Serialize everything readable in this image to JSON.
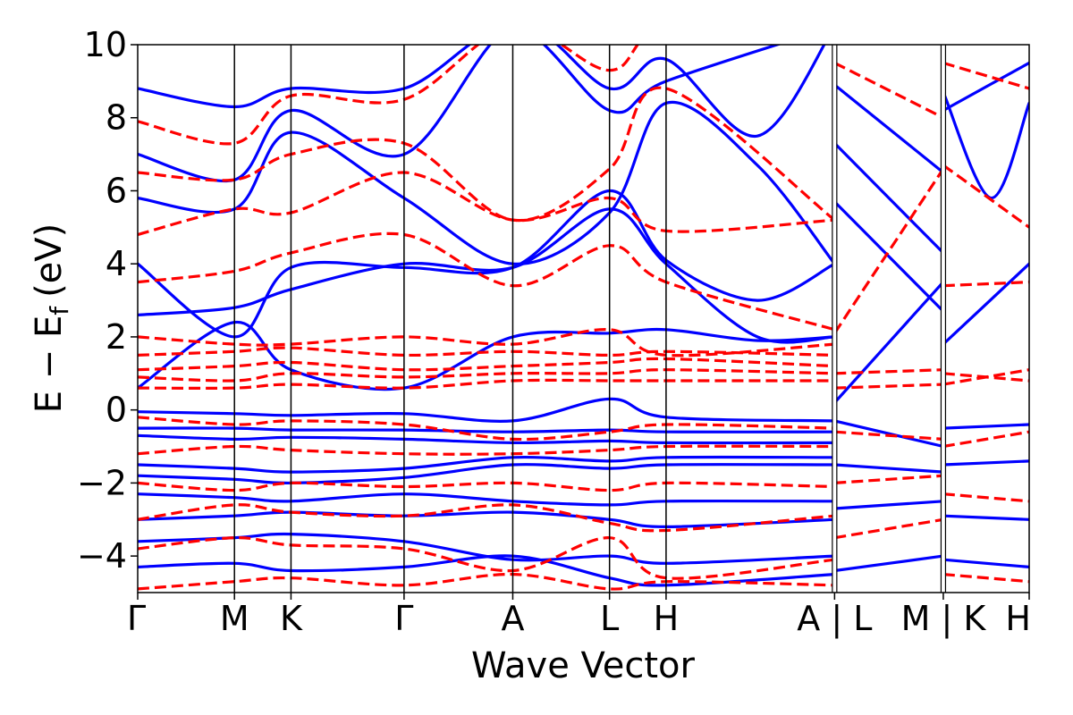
{
  "chart_data": {
    "type": "line",
    "title": "",
    "xlabel": "Wave Vector",
    "ylabel_main": "E − E",
    "ylabel_sub": "f",
    "ylabel_unit": "(eV)",
    "ylim": [
      -5,
      10
    ],
    "y_ticks": [
      -4,
      -2,
      0,
      2,
      4,
      6,
      8,
      10
    ],
    "y_tick_labels": [
      "−4",
      "−2",
      "0",
      "2",
      "4",
      "6",
      "8",
      "10"
    ],
    "grid": false,
    "legend": "none",
    "x_ticks": [
      0,
      0.89,
      1.41,
      2.45,
      3.45,
      4.34,
      4.86,
      6.41,
      7.41,
      8.2
    ],
    "x_tick_labels": [
      "Γ",
      "M",
      "K",
      "Γ",
      "A",
      "L",
      "H",
      "A | L",
      "M | K",
      "H"
    ],
    "path_breaks": [
      6.41,
      7.41
    ],
    "series": [
      {
        "color": "#0000ff",
        "style": "solid",
        "bands": [
          {
            "x": [
              0,
              0.89,
              1.41,
              2.45,
              3.45,
              4.34,
              4.86,
              6.41
            ],
            "y": [
              -0.05,
              -0.1,
              -0.15,
              -0.1,
              -0.3,
              0.3,
              -0.2,
              -0.3
            ]
          },
          {
            "x": [
              0,
              0.89,
              1.41,
              2.45,
              3.45,
              4.34,
              4.86,
              6.41
            ],
            "y": [
              -0.5,
              -0.5,
              -0.55,
              -0.55,
              -0.6,
              -0.55,
              -0.6,
              -0.6
            ]
          },
          {
            "x": [
              0,
              0.89,
              1.41,
              2.45,
              3.45,
              4.34,
              4.86,
              6.41
            ],
            "y": [
              -0.7,
              -0.8,
              -0.75,
              -0.8,
              -0.9,
              -0.85,
              -0.9,
              -0.9
            ]
          },
          {
            "x": [
              0,
              0.89,
              1.41,
              2.45,
              3.45,
              4.34,
              4.86,
              6.41
            ],
            "y": [
              -1.5,
              -1.6,
              -1.7,
              -1.6,
              -1.3,
              -1.4,
              -1.3,
              -1.3
            ]
          },
          {
            "x": [
              0,
              0.89,
              1.41,
              2.45,
              3.45,
              4.34,
              4.86,
              6.41
            ],
            "y": [
              -1.8,
              -1.9,
              -2.0,
              -1.85,
              -1.5,
              -1.6,
              -1.5,
              -1.5
            ]
          },
          {
            "x": [
              0,
              0.89,
              1.41,
              2.45,
              3.45,
              4.34,
              4.86,
              6.41
            ],
            "y": [
              -2.3,
              -2.4,
              -2.5,
              -2.3,
              -2.5,
              -2.6,
              -2.5,
              -2.5
            ]
          },
          {
            "x": [
              0,
              0.89,
              1.41,
              2.45,
              3.45,
              4.34,
              4.86,
              6.41
            ],
            "y": [
              -3.0,
              -2.9,
              -2.8,
              -2.9,
              -2.8,
              -3.0,
              -3.2,
              -3.0
            ]
          },
          {
            "x": [
              0,
              0.89,
              1.41,
              2.45,
              3.45,
              4.34,
              4.86,
              6.41
            ],
            "y": [
              -3.6,
              -3.5,
              -3.4,
              -3.6,
              -4.1,
              -4.0,
              -4.2,
              -4.0
            ]
          },
          {
            "x": [
              0,
              0.89,
              1.41,
              2.45,
              3.45,
              4.34,
              4.86,
              6.41
            ],
            "y": [
              -4.3,
              -4.2,
              -4.4,
              -4.3,
              -4.0,
              -4.6,
              -4.8,
              -4.5
            ]
          },
          {
            "x": [
              0,
              0.89,
              1.41,
              2.45,
              3.45,
              4.34,
              4.86,
              5.7,
              6.41
            ],
            "y": [
              0.6,
              2.4,
              1.1,
              0.6,
              2.0,
              2.1,
              2.2,
              1.9,
              2.0
            ]
          },
          {
            "x": [
              0,
              0.89,
              1.41,
              2.45,
              3.45,
              4.34,
              4.86,
              5.7,
              6.41
            ],
            "y": [
              2.6,
              2.8,
              3.3,
              4.0,
              3.9,
              5.5,
              4.0,
              2.0,
              2.0
            ]
          },
          {
            "x": [
              0,
              0.89,
              1.41,
              2.45,
              3.45,
              4.34,
              4.86,
              5.7,
              6.41
            ],
            "y": [
              4.0,
              2.0,
              3.9,
              3.9,
              3.9,
              6.0,
              4.1,
              3.0,
              4.0
            ]
          },
          {
            "x": [
              0,
              0.89,
              1.41,
              2.45,
              3.45,
              4.34,
              4.86,
              5.7,
              6.41
            ],
            "y": [
              5.8,
              5.5,
              7.6,
              5.8,
              4.0,
              5.4,
              8.4,
              6.7,
              4.0
            ]
          },
          {
            "x": [
              0,
              0.89,
              1.41,
              2.45,
              3.45,
              4.34,
              4.86,
              5.7,
              6.41
            ],
            "y": [
              7.0,
              6.3,
              8.2,
              7.0,
              10.5,
              8.8,
              9.6,
              7.5,
              10.5
            ]
          },
          {
            "x": [
              0,
              0.89,
              1.41,
              2.45,
              3.45,
              4.34,
              4.86,
              6.41
            ],
            "y": [
              8.8,
              8.3,
              8.8,
              8.8,
              10.5,
              8.2,
              9.0,
              10.5
            ]
          },
          {
            "x": [
              6.41,
              7.41
            ],
            "y": [
              0.2,
              3.5
            ]
          },
          {
            "x": [
              6.41,
              7.41
            ],
            "y": [
              5.7,
              2.7
            ]
          },
          {
            "x": [
              6.41,
              7.41
            ],
            "y": [
              7.3,
              4.3
            ]
          },
          {
            "x": [
              6.41,
              7.41
            ],
            "y": [
              8.9,
              6.5
            ]
          },
          {
            "x": [
              6.41,
              7.41
            ],
            "y": [
              -0.3,
              -1.0
            ]
          },
          {
            "x": [
              6.41,
              7.41
            ],
            "y": [
              -1.5,
              -1.7
            ]
          },
          {
            "x": [
              6.41,
              7.41
            ],
            "y": [
              -2.7,
              -2.5
            ]
          },
          {
            "x": [
              6.41,
              7.41
            ],
            "y": [
              -4.4,
              -4.0
            ]
          },
          {
            "x": [
              7.41,
              8.2
            ],
            "y": [
              1.8,
              4.0
            ]
          },
          {
            "x": [
              7.41,
              7.85,
              8.2
            ],
            "y": [
              8.7,
              5.8,
              8.4
            ]
          },
          {
            "x": [
              7.41,
              8.2
            ],
            "y": [
              8.2,
              9.5
            ]
          },
          {
            "x": [
              7.41,
              8.2
            ],
            "y": [
              -0.5,
              -0.4
            ]
          },
          {
            "x": [
              7.41,
              8.2
            ],
            "y": [
              -1.5,
              -1.4
            ]
          },
          {
            "x": [
              7.41,
              8.2
            ],
            "y": [
              -2.9,
              -3.0
            ]
          },
          {
            "x": [
              7.41,
              8.2
            ],
            "y": [
              -4.1,
              -4.3
            ]
          }
        ]
      },
      {
        "color": "#ff0000",
        "style": "dashed",
        "bands": [
          {
            "x": [
              0,
              0.89,
              1.41,
              2.45,
              3.45,
              4.34,
              4.86,
              6.41
            ],
            "y": [
              0.6,
              0.6,
              0.7,
              0.6,
              0.8,
              0.8,
              0.8,
              0.8
            ]
          },
          {
            "x": [
              0,
              0.89,
              1.41,
              2.45,
              3.45,
              4.34,
              4.86,
              6.41
            ],
            "y": [
              0.9,
              0.8,
              1.0,
              0.9,
              1.0,
              1.0,
              1.1,
              1.0
            ]
          },
          {
            "x": [
              0,
              0.89,
              1.41,
              2.45,
              3.45,
              4.34,
              4.86,
              6.41
            ],
            "y": [
              1.1,
              1.2,
              1.3,
              1.1,
              1.2,
              1.3,
              1.4,
              1.2
            ]
          },
          {
            "x": [
              0,
              0.89,
              1.41,
              2.45,
              3.45,
              4.34,
              4.86,
              6.41
            ],
            "y": [
              1.5,
              1.6,
              1.7,
              1.5,
              1.6,
              1.5,
              1.6,
              1.5
            ]
          },
          {
            "x": [
              0,
              0.89,
              1.41,
              2.45,
              3.45,
              4.34,
              4.86,
              6.41
            ],
            "y": [
              2.0,
              1.8,
              1.8,
              2.0,
              1.8,
              2.2,
              1.5,
              1.8
            ]
          },
          {
            "x": [
              0,
              0.89,
              1.41,
              2.45,
              3.45,
              4.34,
              4.86,
              6.41
            ],
            "y": [
              3.5,
              3.8,
              4.3,
              4.8,
              3.4,
              4.5,
              3.5,
              2.2
            ]
          },
          {
            "x": [
              0,
              0.89,
              1.41,
              2.45,
              3.45,
              4.34,
              4.86,
              6.41
            ],
            "y": [
              4.8,
              5.5,
              5.4,
              6.5,
              5.2,
              5.8,
              4.9,
              5.2
            ]
          },
          {
            "x": [
              0,
              0.89,
              1.41,
              2.45,
              3.45,
              4.34,
              4.86,
              6.41
            ],
            "y": [
              6.5,
              6.3,
              7.0,
              7.3,
              5.2,
              6.6,
              8.8,
              5.2
            ]
          },
          {
            "x": [
              0,
              0.89,
              1.41,
              2.45,
              3.45,
              4.34,
              4.86,
              6.41
            ],
            "y": [
              7.9,
              7.3,
              8.6,
              8.5,
              10.5,
              9.3,
              10.5,
              10.5
            ]
          },
          {
            "x": [
              0,
              0.89,
              1.41,
              2.45,
              3.45,
              4.34,
              4.86,
              6.41
            ],
            "y": [
              -0.2,
              -0.4,
              -0.3,
              -0.4,
              -0.8,
              -0.6,
              -0.4,
              -0.5
            ]
          },
          {
            "x": [
              0,
              0.89,
              1.41,
              2.45,
              3.45,
              4.34,
              4.86,
              6.41
            ],
            "y": [
              -1.2,
              -1.0,
              -1.1,
              -1.2,
              -1.2,
              -1.1,
              -1.0,
              -1.0
            ]
          },
          {
            "x": [
              0,
              0.89,
              1.41,
              2.45,
              3.45,
              4.34,
              4.86,
              6.41
            ],
            "y": [
              -2.0,
              -2.2,
              -2.0,
              -2.1,
              -2.0,
              -2.2,
              -2.0,
              -2.1
            ]
          },
          {
            "x": [
              0,
              0.89,
              1.41,
              2.45,
              3.45,
              4.34,
              4.86,
              6.41
            ],
            "y": [
              -3.0,
              -2.6,
              -2.8,
              -2.9,
              -2.6,
              -3.1,
              -3.3,
              -2.9
            ]
          },
          {
            "x": [
              0,
              0.89,
              1.41,
              2.45,
              3.45,
              4.34,
              4.86,
              6.41
            ],
            "y": [
              -3.8,
              -3.5,
              -3.7,
              -3.8,
              -4.4,
              -3.5,
              -4.6,
              -4.1
            ]
          },
          {
            "x": [
              0,
              0.89,
              1.41,
              2.45,
              3.45,
              4.34,
              4.86,
              6.41
            ],
            "y": [
              -4.9,
              -4.7,
              -4.6,
              -4.8,
              -4.5,
              -4.9,
              -4.7,
              -4.8
            ]
          },
          {
            "x": [
              6.41,
              7.41
            ],
            "y": [
              2.1,
              6.6
            ]
          },
          {
            "x": [
              6.41,
              7.41
            ],
            "y": [
              9.5,
              8.0
            ]
          },
          {
            "x": [
              6.41,
              7.41
            ],
            "y": [
              1.0,
              1.1
            ]
          },
          {
            "x": [
              6.41,
              7.41
            ],
            "y": [
              0.6,
              0.7
            ]
          },
          {
            "x": [
              6.41,
              7.41
            ],
            "y": [
              -0.6,
              -0.8
            ]
          },
          {
            "x": [
              6.41,
              7.41
            ],
            "y": [
              -2.0,
              -1.8
            ]
          },
          {
            "x": [
              6.41,
              7.41
            ],
            "y": [
              -3.5,
              -3.0
            ]
          },
          {
            "x": [
              7.41,
              8.2
            ],
            "y": [
              9.5,
              8.8
            ]
          },
          {
            "x": [
              7.41,
              8.2
            ],
            "y": [
              6.7,
              5.0
            ]
          },
          {
            "x": [
              7.41,
              8.2
            ],
            "y": [
              3.4,
              3.5
            ]
          },
          {
            "x": [
              7.41,
              8.2
            ],
            "y": [
              1.0,
              0.8
            ]
          },
          {
            "x": [
              7.41,
              8.2
            ],
            "y": [
              0.7,
              1.1
            ]
          },
          {
            "x": [
              7.41,
              8.2
            ],
            "y": [
              -1.0,
              -0.6
            ]
          },
          {
            "x": [
              7.41,
              8.2
            ],
            "y": [
              -2.3,
              -2.5
            ]
          },
          {
            "x": [
              7.41,
              8.2
            ],
            "y": [
              -4.5,
              -4.7
            ]
          }
        ]
      }
    ]
  }
}
